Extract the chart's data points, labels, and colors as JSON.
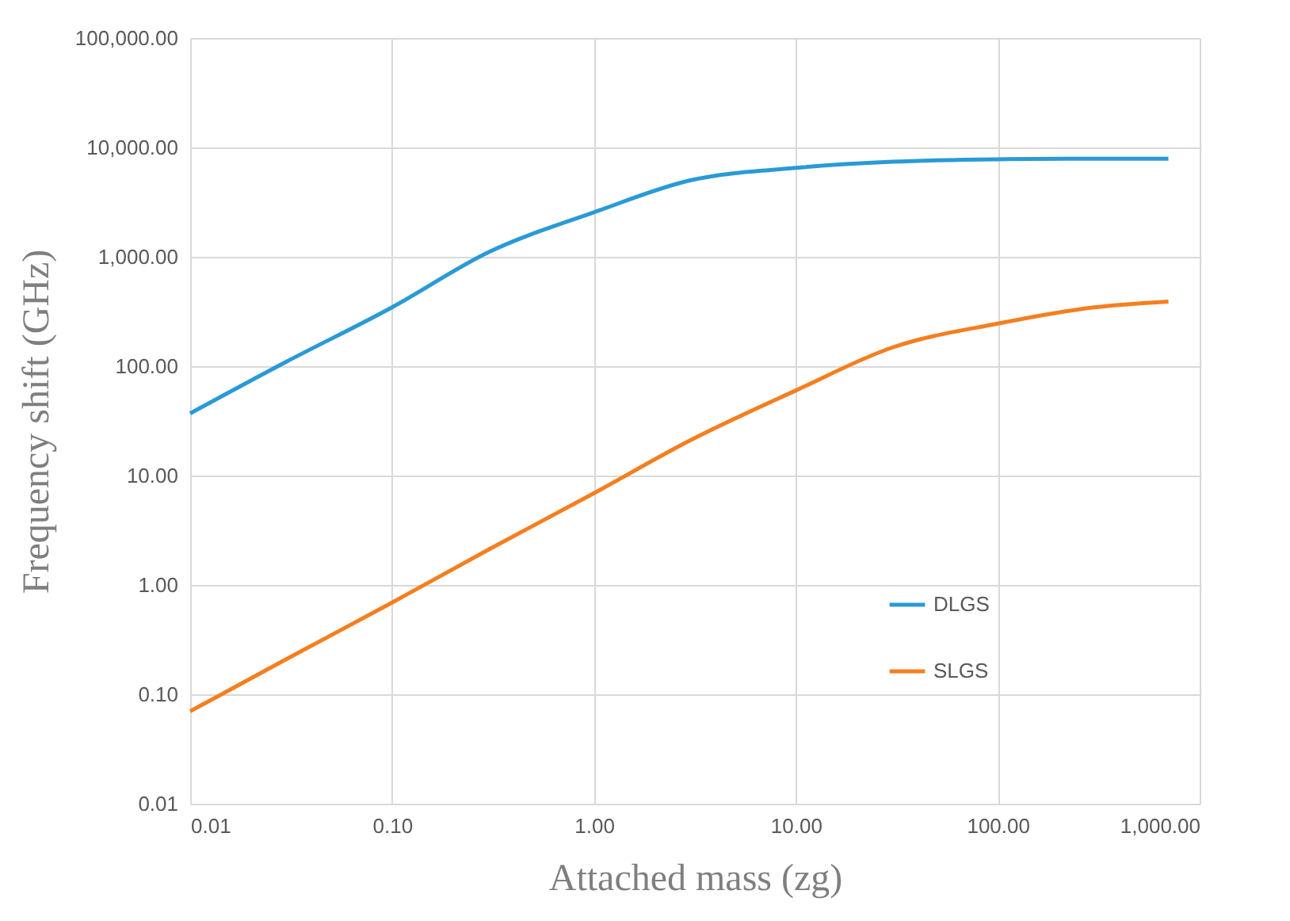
{
  "chart_data": {
    "type": "line",
    "xlabel": "Attached mass (zg)",
    "ylabel": "Frequency shift (GHz)",
    "log": "xy",
    "grid": true,
    "legend": "right",
    "marker": "none",
    "line_style": "solid",
    "x": [
      0.01,
      0.03,
      0.1,
      0.3,
      1,
      3,
      10,
      30,
      100,
      300,
      700
    ],
    "xlim": [
      0.01,
      1000
    ],
    "xticks": [
      {
        "value": 0.01,
        "label": "0.01"
      },
      {
        "value": 0.1,
        "label": "0.10"
      },
      {
        "value": 1,
        "label": "1.00"
      },
      {
        "value": 10,
        "label": "10.00"
      },
      {
        "value": 100,
        "label": "100.00"
      },
      {
        "value": 1000,
        "label": "1,000.00"
      }
    ],
    "ylim": [
      0.01,
      100000
    ],
    "yticks": [
      {
        "value": 0.01,
        "label": "0.01"
      },
      {
        "value": 0.1,
        "label": "0.10"
      },
      {
        "value": 1,
        "label": "1.00"
      },
      {
        "value": 10,
        "label": "10.00"
      },
      {
        "value": 100,
        "label": "100.00"
      },
      {
        "value": 1000,
        "label": "1,000.00"
      },
      {
        "value": 10000,
        "label": "10,000.00"
      },
      {
        "value": 100000,
        "label": "100,000.00"
      }
    ],
    "series": [
      {
        "name": "DLGS",
        "color": "#2a9ad6",
        "values": [
          37,
          110,
          345,
          1100,
          2550,
          5000,
          6500,
          7400,
          7800,
          7900,
          7900
        ]
      },
      {
        "name": "SLGS",
        "color": "#f47f20",
        "values": [
          0.07,
          0.21,
          0.69,
          2.1,
          6.9,
          21,
          60,
          148,
          245,
          345,
          390
        ]
      }
    ]
  }
}
